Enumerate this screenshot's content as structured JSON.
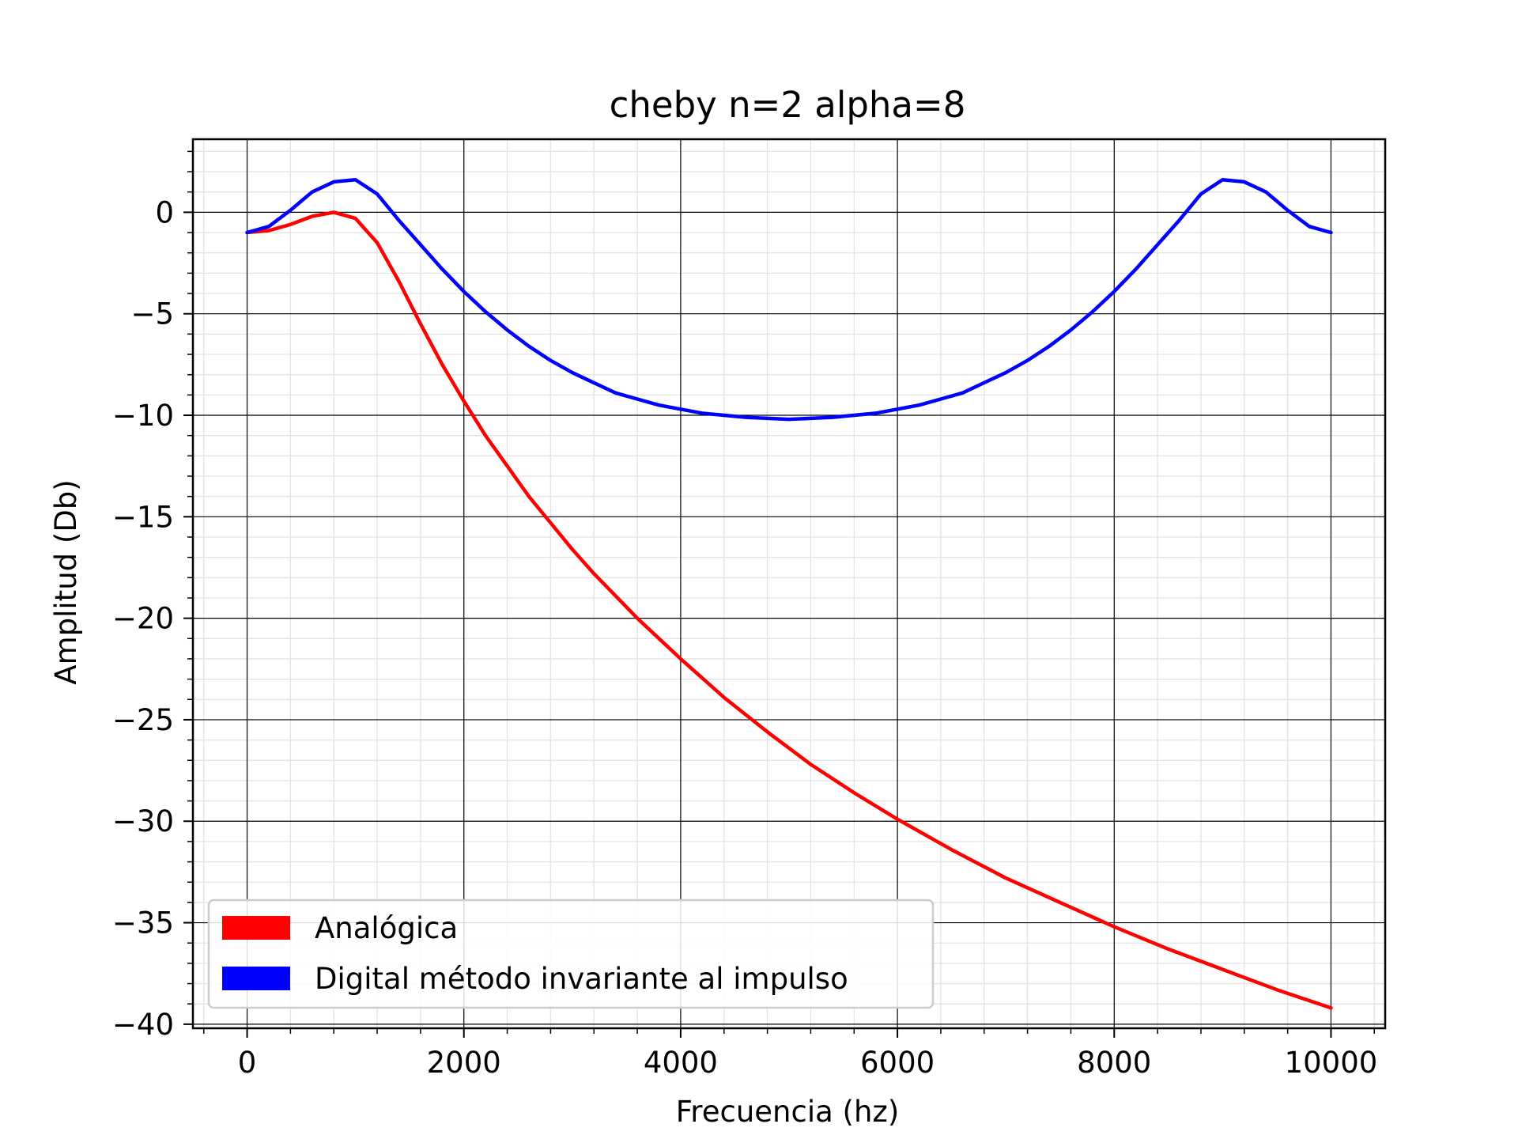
{
  "chart_data": {
    "type": "line",
    "title": "cheby n=2 alpha=8",
    "xlabel": "Frecuencia (hz)",
    "ylabel": "Amplitud (Db)",
    "xlim": [
      -500,
      10500
    ],
    "ylim": [
      -40.2,
      3.6
    ],
    "xticks": [
      0,
      2000,
      4000,
      6000,
      8000,
      10000
    ],
    "xtick_labels": [
      "0",
      "2000",
      "4000",
      "6000",
      "8000",
      "10000"
    ],
    "yticks": [
      0,
      -5,
      -10,
      -15,
      -20,
      -25,
      -30,
      -35,
      -40
    ],
    "ytick_labels": [
      "0",
      "−5",
      "−10",
      "−15",
      "−20",
      "−25",
      "−30",
      "−35",
      "−40"
    ],
    "grid": true,
    "minor_grid": true,
    "legend_position": "lower-left",
    "series": [
      {
        "name": "Analógica",
        "color": "#ff0000",
        "x": [
          0,
          200,
          400,
          600,
          800,
          1000,
          1200,
          1400,
          1600,
          1800,
          2000,
          2200,
          2400,
          2600,
          2800,
          3000,
          3200,
          3400,
          3600,
          3800,
          4000,
          4400,
          4800,
          5200,
          5600,
          6000,
          6500,
          7000,
          7500,
          8000,
          8500,
          9000,
          9500,
          10000
        ],
        "y": [
          -1.0,
          -0.9,
          -0.6,
          -0.2,
          0.0,
          -0.3,
          -1.5,
          -3.4,
          -5.5,
          -7.5,
          -9.3,
          -11.0,
          -12.5,
          -14.0,
          -15.3,
          -16.6,
          -17.8,
          -18.9,
          -20.0,
          -21.0,
          -22.0,
          -23.9,
          -25.6,
          -27.2,
          -28.6,
          -29.9,
          -31.4,
          -32.8,
          -34.0,
          -35.2,
          -36.3,
          -37.3,
          -38.3,
          -39.2
        ]
      },
      {
        "name": "Digital método invariante al impulso",
        "color": "#0000ff",
        "x": [
          0,
          200,
          400,
          600,
          800,
          1000,
          1200,
          1400,
          1600,
          1800,
          2000,
          2200,
          2400,
          2600,
          2800,
          3000,
          3200,
          3400,
          3600,
          3800,
          4000,
          4200,
          4400,
          4600,
          4800,
          5000,
          5200,
          5400,
          5600,
          5800,
          6000,
          6200,
          6400,
          6600,
          6800,
          7000,
          7200,
          7400,
          7600,
          7800,
          8000,
          8200,
          8400,
          8600,
          8800,
          9000,
          9200,
          9400,
          9600,
          9800,
          10000
        ],
        "y": [
          -1.0,
          -0.7,
          0.1,
          1.0,
          1.5,
          1.6,
          0.9,
          -0.4,
          -1.6,
          -2.8,
          -3.9,
          -4.9,
          -5.8,
          -6.6,
          -7.3,
          -7.9,
          -8.4,
          -8.9,
          -9.2,
          -9.5,
          -9.7,
          -9.9,
          -10.0,
          -10.1,
          -10.15,
          -10.2,
          -10.15,
          -10.1,
          -10.0,
          -9.9,
          -9.7,
          -9.5,
          -9.2,
          -8.9,
          -8.4,
          -7.9,
          -7.3,
          -6.6,
          -5.8,
          -4.9,
          -3.9,
          -2.8,
          -1.6,
          -0.4,
          0.9,
          1.6,
          1.5,
          1.0,
          0.1,
          -0.7,
          -1.0
        ]
      }
    ]
  }
}
